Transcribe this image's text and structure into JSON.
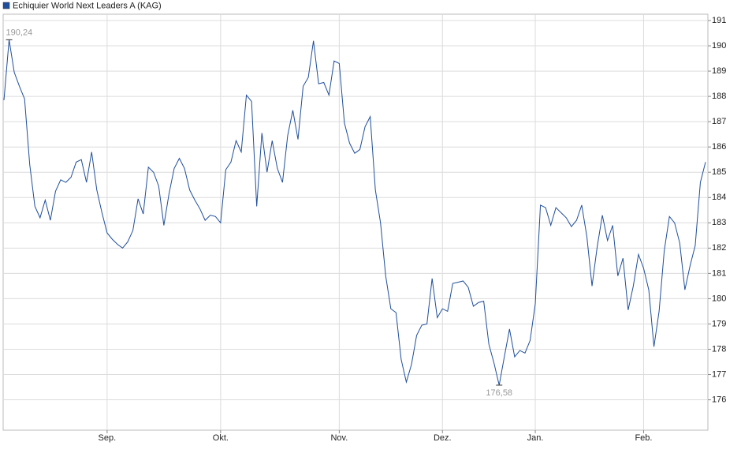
{
  "chart_data": {
    "type": "line",
    "categories": [
      null,
      null,
      null,
      null,
      null,
      null,
      null,
      null,
      null,
      null,
      null,
      null,
      null,
      null,
      null,
      null,
      null,
      null,
      null,
      null,
      "Sep.",
      null,
      null,
      null,
      null,
      null,
      null,
      null,
      null,
      null,
      null,
      null,
      null,
      null,
      null,
      null,
      null,
      null,
      null,
      null,
      null,
      null,
      "Okt.",
      null,
      null,
      null,
      null,
      null,
      null,
      null,
      null,
      null,
      null,
      null,
      null,
      null,
      null,
      null,
      null,
      null,
      null,
      null,
      null,
      null,
      null,
      "Nov.",
      null,
      null,
      null,
      null,
      null,
      null,
      null,
      null,
      null,
      null,
      null,
      null,
      null,
      null,
      null,
      null,
      null,
      null,
      null,
      "Dez.",
      null,
      null,
      null,
      null,
      null,
      null,
      null,
      null,
      null,
      null,
      null,
      null,
      null,
      null,
      null,
      null,
      null,
      "Jan.",
      null,
      null,
      null,
      null,
      null,
      null,
      null,
      null,
      null,
      null,
      null,
      null,
      null,
      null,
      null,
      null,
      null,
      null,
      null,
      null,
      "Feb.",
      null,
      null,
      null,
      null,
      null,
      null,
      null,
      null,
      null,
      null,
      null,
      null
    ],
    "series": [
      {
        "name": "Echiquier World Next Leaders A (KAG)",
        "color": "#1f4e9c",
        "values": [
          187.85,
          190.24,
          188.95,
          188.4,
          187.9,
          185.3,
          183.65,
          183.2,
          183.9,
          183.1,
          184.25,
          184.7,
          184.6,
          184.8,
          185.4,
          185.5,
          184.6,
          185.8,
          184.3,
          183.4,
          182.6,
          182.35,
          182.15,
          182.0,
          182.25,
          182.7,
          183.95,
          183.35,
          185.2,
          185.0,
          184.45,
          182.9,
          184.15,
          185.15,
          185.55,
          185.15,
          184.3,
          183.9,
          183.55,
          183.1,
          183.3,
          183.25,
          183.0,
          185.1,
          185.4,
          186.25,
          185.8,
          188.05,
          187.8,
          183.65,
          186.55,
          185.0,
          186.25,
          185.15,
          184.6,
          186.45,
          187.45,
          186.3,
          188.4,
          188.75,
          190.2,
          188.5,
          188.55,
          188.05,
          189.4,
          189.3,
          186.95,
          186.15,
          185.75,
          185.9,
          186.8,
          187.2,
          184.3,
          183.0,
          180.9,
          179.6,
          179.45,
          177.6,
          176.7,
          177.4,
          178.55,
          178.95,
          179.0,
          180.8,
          179.25,
          179.6,
          179.5,
          180.6,
          180.65,
          180.7,
          180.45,
          179.7,
          179.85,
          179.9,
          178.2,
          177.45,
          176.58,
          177.7,
          178.8,
          177.7,
          177.95,
          177.85,
          178.35,
          179.8,
          183.7,
          183.6,
          182.9,
          183.6,
          183.4,
          183.2,
          182.85,
          183.1,
          183.7,
          182.45,
          180.5,
          182.05,
          183.3,
          182.3,
          182.9,
          180.9,
          181.6,
          179.55,
          180.5,
          181.75,
          181.2,
          180.35,
          178.1,
          179.5,
          181.9,
          183.25,
          183.0,
          182.2,
          180.35,
          181.3,
          182.1,
          184.6,
          185.4
        ],
        "value_labels": [
          null,
          "190,24",
          null,
          null,
          null,
          null,
          null,
          null,
          null,
          null,
          null,
          null,
          null,
          null,
          null,
          null,
          null,
          null,
          null,
          null,
          null,
          null,
          null,
          null,
          null,
          null,
          null,
          null,
          null,
          null,
          null,
          null,
          null,
          null,
          null,
          null,
          null,
          null,
          null,
          null,
          null,
          null,
          null,
          null,
          null,
          null,
          null,
          null,
          null,
          null,
          null,
          null,
          null,
          null,
          null,
          null,
          null,
          null,
          null,
          null,
          null,
          null,
          null,
          null,
          null,
          null,
          null,
          null,
          null,
          null,
          null,
          null,
          null,
          null,
          null,
          null,
          null,
          null,
          null,
          null,
          null,
          null,
          null,
          null,
          null,
          null,
          null,
          null,
          null,
          null,
          null,
          null,
          null,
          null,
          null,
          null,
          "176,58",
          null,
          null,
          null,
          null,
          null,
          null,
          null,
          null,
          null,
          null,
          null,
          null,
          null,
          null,
          null,
          null,
          null,
          null,
          null,
          null,
          null,
          null,
          null,
          null,
          null,
          null,
          null,
          null,
          null,
          null,
          null,
          null,
          null,
          null,
          null,
          null,
          null,
          null,
          null
        ]
      }
    ],
    "ylim": [
      174.8,
      191.25
    ],
    "yticks": [
      176,
      177,
      178,
      179,
      180,
      181,
      182,
      183,
      184,
      185,
      186,
      187,
      188,
      189,
      190,
      191
    ],
    "grid": true
  }
}
